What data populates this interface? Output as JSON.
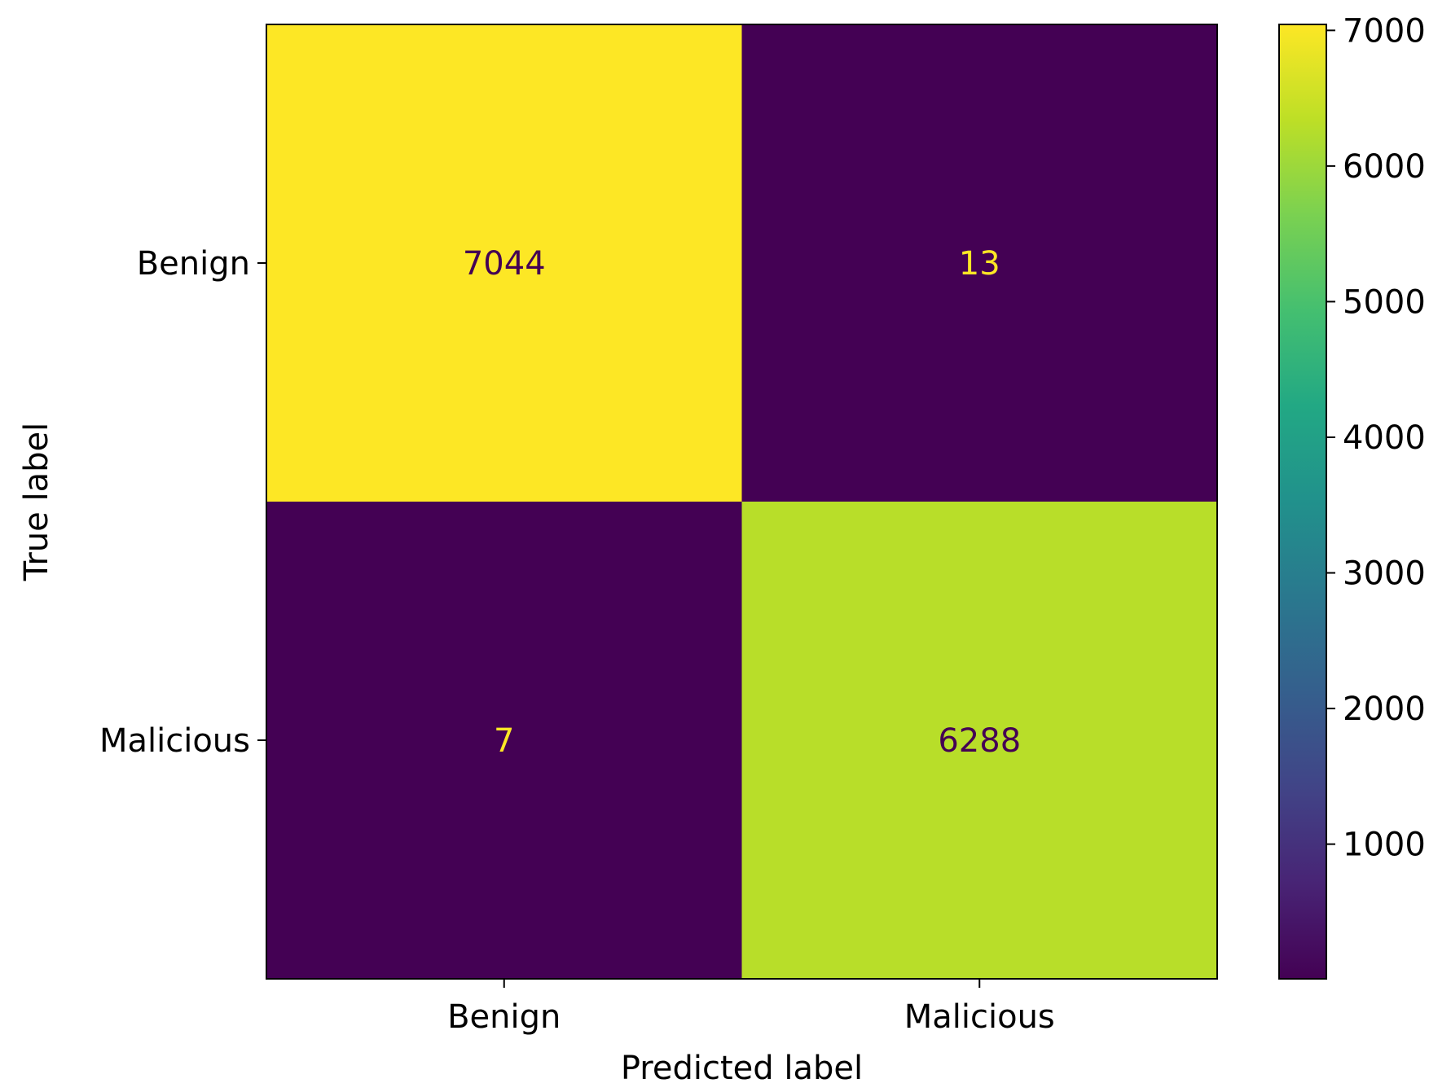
{
  "chart_data": {
    "type": "heatmap",
    "title": "",
    "xlabel": "Predicted label",
    "ylabel": "True label",
    "x_categories": [
      "Benign",
      "Malicious"
    ],
    "y_categories": [
      "Benign",
      "Malicious"
    ],
    "values": [
      [
        7044,
        13
      ],
      [
        7,
        6288
      ]
    ],
    "colormap": "viridis",
    "colorbar": {
      "min": 7,
      "max": 7044,
      "ticks": [
        1000,
        2000,
        3000,
        4000,
        5000,
        6000,
        7000
      ],
      "tick_labels": [
        "1000",
        "2000",
        "3000",
        "4000",
        "5000",
        "6000",
        "7000"
      ]
    },
    "colors": {
      "low": "#440154",
      "high": "#fde725",
      "text_on_light": "#440154",
      "text_on_dark": "#fde725"
    },
    "grid": false
  }
}
